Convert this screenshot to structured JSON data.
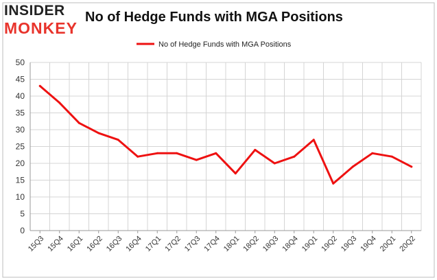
{
  "logo": {
    "line1": "INSIDER",
    "line2": "MONKEY"
  },
  "colors": {
    "line": "#ee1111",
    "logo_accent": "#e8342c",
    "grid": "#d4d4d4",
    "axis": "#999999"
  },
  "chart_data": {
    "type": "line",
    "title": "No of Hedge Funds with MGA Positions",
    "xlabel": "",
    "ylabel": "",
    "ylim": [
      0,
      50
    ],
    "yticks": [
      0,
      5,
      10,
      15,
      20,
      25,
      30,
      35,
      40,
      45,
      50
    ],
    "grid": true,
    "legend_position": "top-center",
    "categories": [
      "15Q3",
      "15Q4",
      "16Q1",
      "16Q2",
      "16Q3",
      "16Q4",
      "17Q1",
      "17Q2",
      "17Q3",
      "17Q4",
      "18Q1",
      "18Q2",
      "18Q3",
      "18Q4",
      "19Q1",
      "19Q2",
      "19Q3",
      "19Q4",
      "20Q1",
      "20Q2"
    ],
    "series": [
      {
        "name": "No of Hedge Funds with MGA Positions",
        "values": [
          43,
          38,
          32,
          29,
          27,
          22,
          23,
          23,
          21,
          23,
          17,
          24,
          20,
          22,
          27,
          14,
          19,
          23,
          22,
          19
        ]
      }
    ]
  }
}
